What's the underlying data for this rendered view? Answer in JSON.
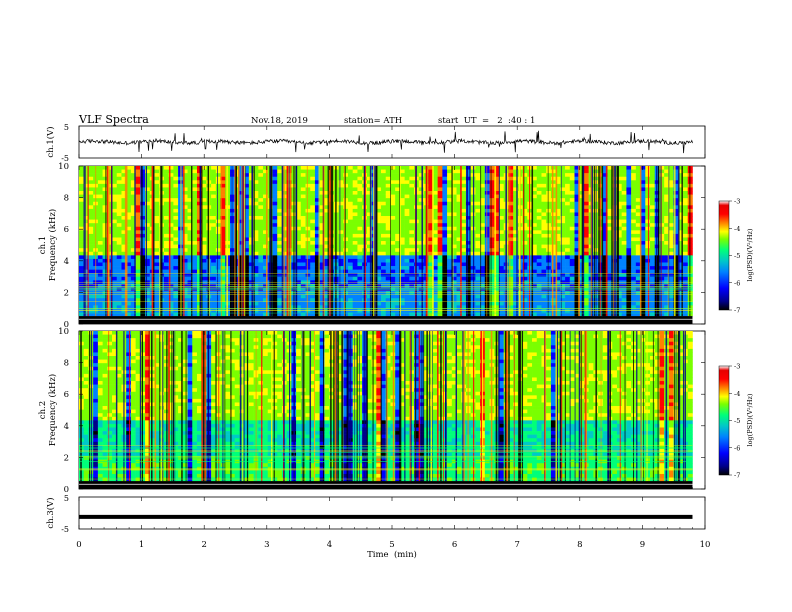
{
  "header": {
    "title": "VLF  Spectra",
    "date": "Nov.18, 2019",
    "station": "station= ATH",
    "start": "start  UT  =   2  :40 : 1"
  },
  "colors": {
    "colormap": [
      "#000000",
      "#00008a",
      "#0000ff",
      "#0082ff",
      "#00c8c8",
      "#00ff7a",
      "#7aff00",
      "#ffff00",
      "#ff8000",
      "#ff0000",
      "#e60000",
      "#ffffff"
    ],
    "trace": "#000000"
  },
  "chart_data": [
    {
      "type": "line",
      "name": "ch1-waveform",
      "ylabel": "ch.1(V)",
      "ylim": [
        -5,
        5
      ],
      "xlim": [
        0,
        10
      ],
      "yticks": [
        "5",
        "-5"
      ],
      "note_values": "noisy waveform near 0 V with spikes"
    },
    {
      "type": "heatmap",
      "name": "ch1-spectrogram",
      "ylabel": "ch.1\nFrequency  (kHz)",
      "ylim": [
        0,
        10
      ],
      "xlim": [
        0,
        10
      ],
      "yticks": [
        "0",
        "2",
        "4",
        "6",
        "8",
        "10"
      ],
      "colorbar": {
        "label": "log(PSD)(V²/Hz)",
        "ticks": [
          "-3",
          "-4",
          "-5",
          "-6",
          "-7"
        ],
        "range": [
          -7,
          -3
        ]
      }
    },
    {
      "type": "heatmap",
      "name": "ch2-spectrogram",
      "ylabel": "ch.2\nFrequency  (kHz)",
      "ylim": [
        0,
        10
      ],
      "xlim": [
        0,
        10
      ],
      "yticks": [
        "0",
        "2",
        "4",
        "6",
        "8",
        "10"
      ],
      "colorbar": {
        "label": "log(PSD)(V²/Hz)",
        "ticks": [
          "-3",
          "-4",
          "-5",
          "-6",
          "-7"
        ],
        "range": [
          -7,
          -3
        ]
      }
    },
    {
      "type": "line",
      "name": "ch3-waveform",
      "ylabel": "ch.3(V)",
      "ylim": [
        -5,
        5
      ],
      "xlim": [
        0,
        10
      ],
      "yticks": [
        "5",
        "-5"
      ],
      "x": [
        0,
        9.8
      ],
      "y": [
        -1.2,
        -1.2
      ]
    }
  ],
  "xaxis": {
    "label": "Time  (min)",
    "ticks": [
      "0",
      "1",
      "2",
      "3",
      "4",
      "5",
      "6",
      "7",
      "8",
      "9",
      "10"
    ],
    "range": [
      0,
      10
    ],
    "data_end": 9.8
  }
}
